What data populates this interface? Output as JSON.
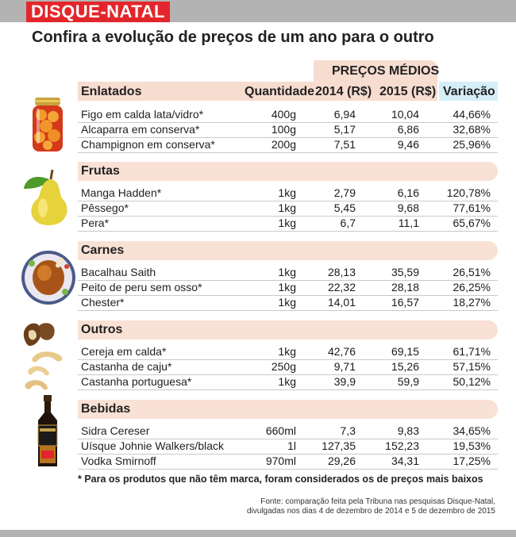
{
  "header": {
    "brand": "DISQUE-NATAL",
    "subtitle": "Confira a evolução de preços de um ano para o outro",
    "group_label": "PREÇOS MÉDIOS"
  },
  "columns": {
    "quantity": "Quantidade",
    "y2014": "2014 (R$)",
    "y2015": "2015 (R$)",
    "variation": "Variação"
  },
  "categories": [
    {
      "name": "Enlatados",
      "icon": "canned-peaches-jar-icon",
      "rows": [
        {
          "product": "Figo em calda lata/vidro*",
          "qty": "400g",
          "p2014": "6,94",
          "p2015": "10,04",
          "var": "44,66%"
        },
        {
          "product": "Alcaparra em conserva*",
          "qty": "100g",
          "p2014": "5,17",
          "p2015": "6,86",
          "var": "32,68%"
        },
        {
          "product": "Champignon em conserva*",
          "qty": "200g",
          "p2014": "7,51",
          "p2015": "9,46",
          "var": "25,96%"
        }
      ]
    },
    {
      "name": "Frutas",
      "icon": "pear-icon",
      "rows": [
        {
          "product": "Manga Hadden*",
          "qty": "1kg",
          "p2014": "2,79",
          "p2015": "6,16",
          "var": "120,78%"
        },
        {
          "product": "Pêssego*",
          "qty": "1kg",
          "p2014": "5,45",
          "p2015": "9,68",
          "var": "77,61%"
        },
        {
          "product": "Pera*",
          "qty": "1kg",
          "p2014": "6,7",
          "p2015": "11,1",
          "var": "65,67%"
        }
      ]
    },
    {
      "name": "Carnes",
      "icon": "roast-turkey-icon",
      "rows": [
        {
          "product": "Bacalhau Saith",
          "qty": "1kg",
          "p2014": "28,13",
          "p2015": "35,59",
          "var": "26,51%"
        },
        {
          "product": "Peito de peru sem osso*",
          "qty": "1kg",
          "p2014": "22,32",
          "p2015": "28,18",
          "var": "26,25%"
        },
        {
          "product": "Chester*",
          "qty": "1kg",
          "p2014": "14,01",
          "p2015": "16,57",
          "var": "18,27%"
        }
      ]
    },
    {
      "name": "Outros",
      "icon": "nuts-icon",
      "rows": [
        {
          "product": "Cereja em calda*",
          "qty": "1kg",
          "p2014": "42,76",
          "p2015": "69,15",
          "var": "61,71%"
        },
        {
          "product": "Castanha de caju*",
          "qty": "250g",
          "p2014": "9,71",
          "p2015": "15,26",
          "var": "57,15%"
        },
        {
          "product": "Castanha portuguesa*",
          "qty": "1kg",
          "p2014": "39,9",
          "p2015": "59,9",
          "var": "50,12%"
        }
      ]
    },
    {
      "name": "Bebidas",
      "icon": "whisky-bottle-icon",
      "rows": [
        {
          "product": "Sidra Cereser",
          "qty": "660ml",
          "p2014": "7,3",
          "p2015": "9,83",
          "var": "34,65%"
        },
        {
          "product": "Uísque Johnie Walkers/black",
          "qty": "1l",
          "p2014": "127,35",
          "p2015": "152,23",
          "var": "19,53%"
        },
        {
          "product": "Vodka Smirnoff",
          "qty": "970ml",
          "p2014": "29,26",
          "p2015": "34,31",
          "var": "17,25%"
        }
      ]
    }
  ],
  "footnote": "* Para os produtos que não têm marca, foram considerados os de preços mais baixos",
  "source_line1": "Fonte: comparação feita pela Tribuna nas pesquisas Disque-Natal,",
  "source_line2": "divulgadas nos dias 4 de dezembro de 2014 e 5 de dezembro de 2015",
  "colors": {
    "brand_red": "#e3262b",
    "category_band": "#f9e1d5",
    "variation_header": "#d6eef7",
    "bar_gray": "#b3b3b3"
  }
}
